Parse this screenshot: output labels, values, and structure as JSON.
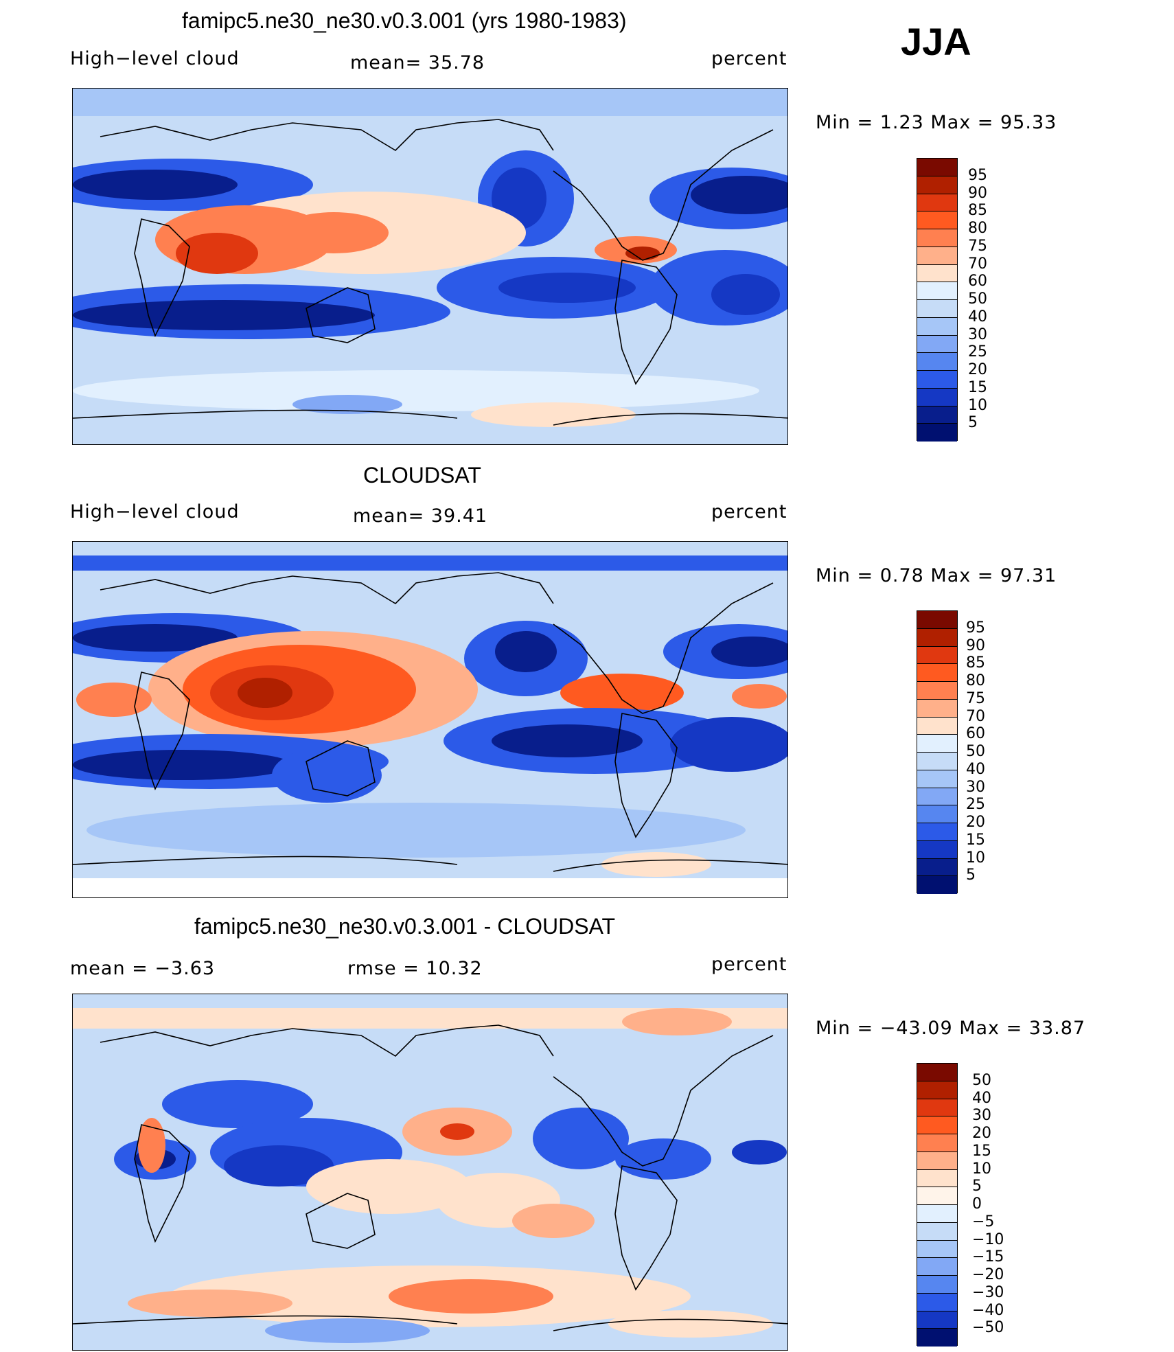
{
  "season": "JJA",
  "panels": [
    {
      "title": "famipc5.ne30_ne30.v0.3.001 (yrs 1980-1983)",
      "left_label": "High−level cloud",
      "center_label": "mean=   35.78",
      "right_label": "percent",
      "minmax": "Min  =     1.23  Max  =    95.33",
      "colorbar": {
        "labels": [
          "95",
          "90",
          "85",
          "80",
          "75",
          "70",
          "60",
          "50",
          "40",
          "30",
          "25",
          "20",
          "15",
          "10",
          "5"
        ],
        "colors": [
          "#7a0a00",
          "#b02000",
          "#e03810",
          "#ff5a20",
          "#ff8050",
          "#ffb08a",
          "#ffe2cc",
          "#e2f0fe",
          "#c6dcf7",
          "#a6c6f7",
          "#82a8f5",
          "#5686f0",
          "#2c5ae8",
          "#1538c4",
          "#081e8c",
          "#001070"
        ]
      }
    },
    {
      "title": "CLOUDSAT",
      "left_label": "High−level cloud",
      "center_label": "mean=   39.41",
      "right_label": "percent",
      "minmax": "Min  =     0.78  Max  =    97.31",
      "colorbar": {
        "labels": [
          "95",
          "90",
          "85",
          "80",
          "75",
          "70",
          "60",
          "50",
          "40",
          "30",
          "25",
          "20",
          "15",
          "10",
          "5"
        ],
        "colors": [
          "#7a0a00",
          "#b02000",
          "#e03810",
          "#ff5a20",
          "#ff8050",
          "#ffb08a",
          "#ffe2cc",
          "#e2f0fe",
          "#c6dcf7",
          "#a6c6f7",
          "#82a8f5",
          "#5686f0",
          "#2c5ae8",
          "#1538c4",
          "#081e8c",
          "#001070"
        ]
      }
    },
    {
      "title": "famipc5.ne30_ne30.v0.3.001 - CLOUDSAT",
      "left_label": "mean  =    −3.63",
      "center_label": "rmse  =    10.32",
      "right_label": "percent",
      "minmax": "Min  = −43.09  Max  =    33.87",
      "colorbar": {
        "labels": [
          "50",
          "40",
          "30",
          "20",
          "15",
          "10",
          "5",
          "0",
          "−5",
          "−10",
          "−15",
          "−20",
          "−30",
          "−40",
          "−50"
        ],
        "colors": [
          "#7a0a00",
          "#b02000",
          "#e03810",
          "#ff5a20",
          "#ff8050",
          "#ffb08a",
          "#ffe2cc",
          "#fff4ea",
          "#e2f0fe",
          "#c6dcf7",
          "#a6c6f7",
          "#82a8f5",
          "#5686f0",
          "#2c5ae8",
          "#1538c4",
          "#001070"
        ]
      }
    }
  ]
}
